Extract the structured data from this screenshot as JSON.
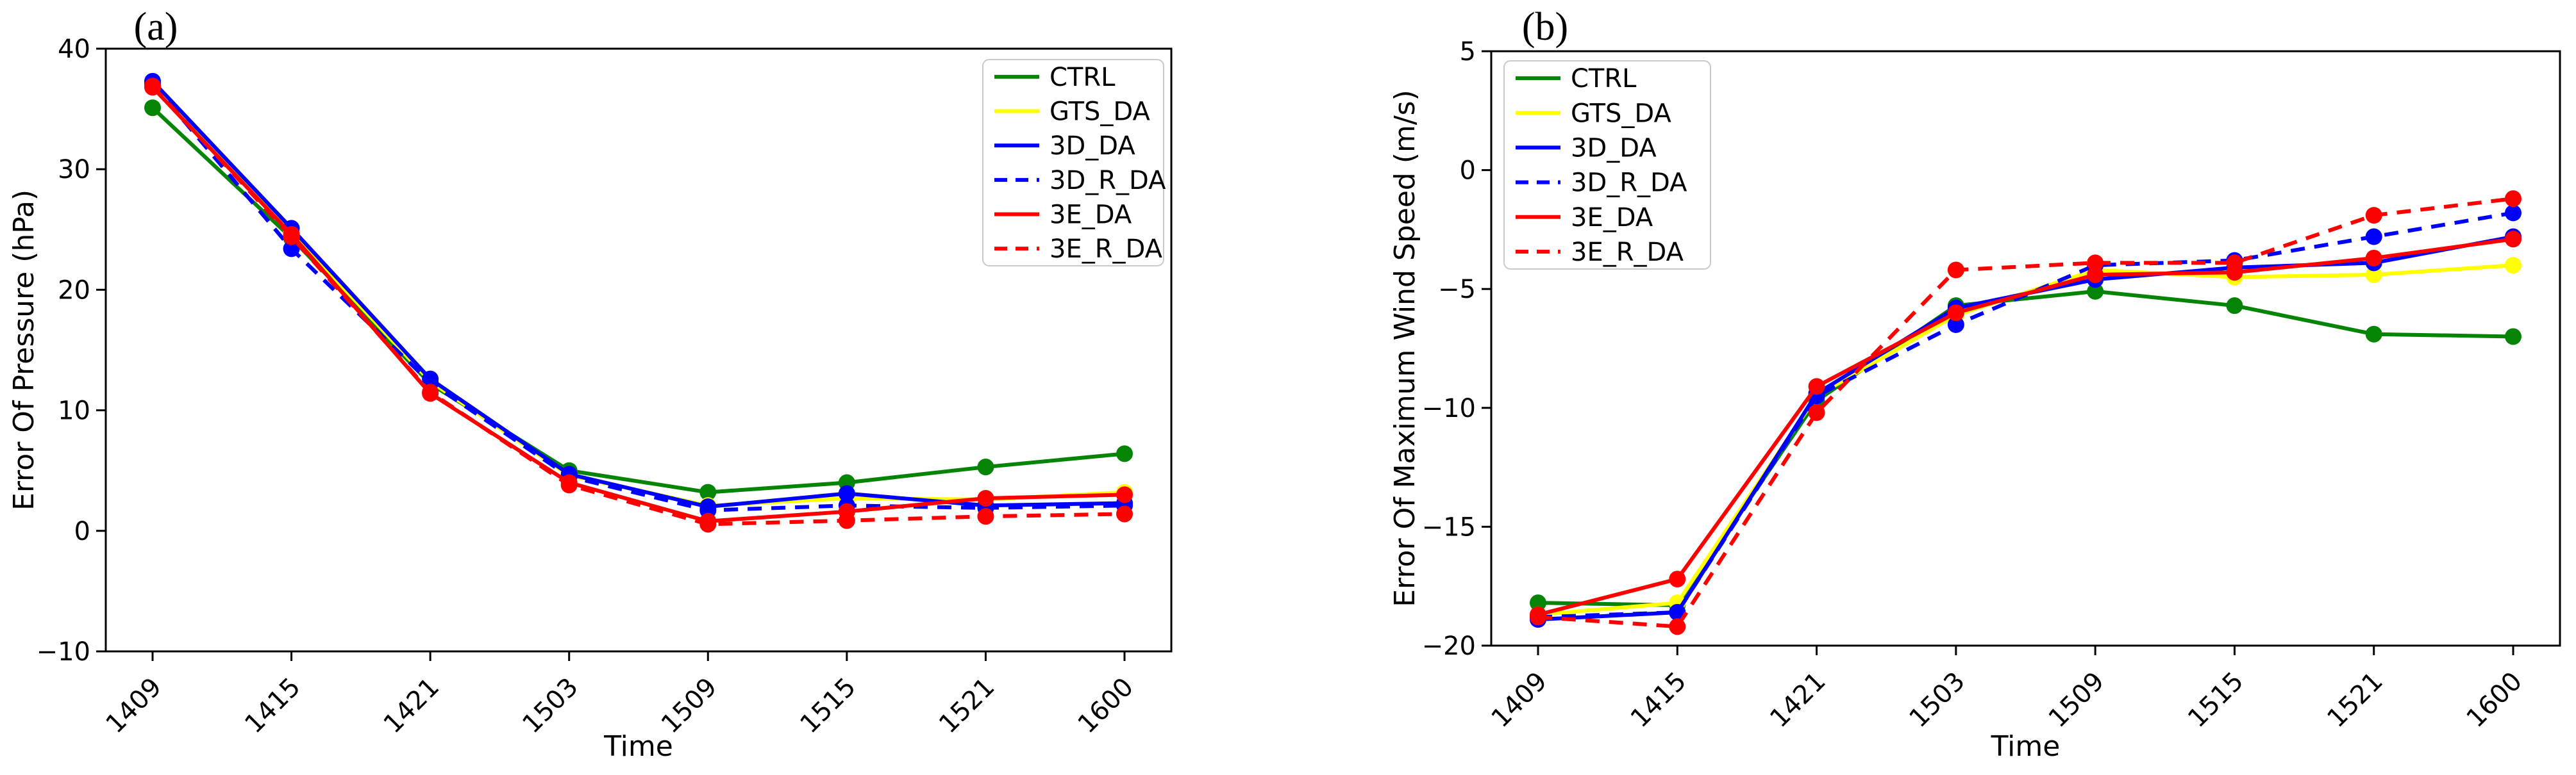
{
  "figure": {
    "background": "#ffffff",
    "panel_labels": [
      "(a)",
      "(b)"
    ]
  },
  "colors": {
    "green": "#068406",
    "yellow": "#ffff00",
    "blue": "#0000ff",
    "red": "#ff0000",
    "axis": "#000000",
    "legend_border": "#c9c9c9"
  },
  "chart_data": [
    {
      "type": "line",
      "title": "(a)",
      "xlabel": "Time",
      "ylabel": "Error Of Pressure (hPa)",
      "ylim": [
        -10,
        40
      ],
      "yticks": [
        40,
        30,
        20,
        10,
        0,
        -10
      ],
      "categories": [
        "1409",
        "1415",
        "1421",
        "1503",
        "1509",
        "1515",
        "1521",
        "1600"
      ],
      "grid": false,
      "legend_position": "upper right",
      "series": [
        {
          "name": "CTRL",
          "color": "#068406",
          "dash": false,
          "values": [
            35.1,
            24.3,
            12.2,
            5.0,
            3.2,
            4.0,
            5.3,
            6.4
          ]
        },
        {
          "name": "GTS_DA",
          "color": "#ffff00",
          "dash": false,
          "values": [
            36.9,
            24.8,
            12.4,
            4.6,
            2.1,
            2.7,
            2.6,
            3.2
          ]
        },
        {
          "name": "3D_DA",
          "color": "#0000ff",
          "dash": false,
          "values": [
            37.3,
            25.1,
            12.6,
            4.7,
            2.0,
            3.1,
            2.1,
            2.3
          ]
        },
        {
          "name": "3D_R_DA",
          "color": "#0000ff",
          "dash": true,
          "values": [
            37.1,
            23.4,
            12.3,
            4.5,
            1.7,
            2.1,
            1.9,
            2.1
          ]
        },
        {
          "name": "3E_DA",
          "color": "#ff0000",
          "dash": false,
          "values": [
            36.8,
            24.6,
            11.4,
            4.0,
            0.8,
            1.6,
            2.7,
            3.0
          ]
        },
        {
          "name": "3E_R_DA",
          "color": "#ff0000",
          "dash": true,
          "values": [
            36.9,
            24.4,
            11.5,
            3.8,
            0.55,
            0.85,
            1.2,
            1.4
          ]
        }
      ]
    },
    {
      "type": "line",
      "title": "(b)",
      "xlabel": "Time",
      "ylabel": "Error Of Maximum Wind Speed (m/s)",
      "ylim": [
        -20,
        5
      ],
      "yticks": [
        5,
        0,
        -5,
        -10,
        -15,
        -20
      ],
      "categories": [
        "1409",
        "1415",
        "1421",
        "1503",
        "1509",
        "1515",
        "1521",
        "1600"
      ],
      "grid": false,
      "legend_position": "upper left",
      "series": [
        {
          "name": "CTRL",
          "color": "#068406",
          "dash": false,
          "values": [
            -18.2,
            -18.3,
            -9.7,
            -5.7,
            -5.1,
            -5.7,
            -6.9,
            -7.0
          ]
        },
        {
          "name": "GTS_DA",
          "color": "#ffff00",
          "dash": false,
          "values": [
            -18.7,
            -18.2,
            -9.5,
            -6.1,
            -4.2,
            -4.5,
            -4.4,
            -4.0
          ]
        },
        {
          "name": "3D_DA",
          "color": "#0000ff",
          "dash": false,
          "values": [
            -18.9,
            -18.6,
            -9.4,
            -5.8,
            -4.6,
            -4.1,
            -3.9,
            -2.8
          ]
        },
        {
          "name": "3D_R_DA",
          "color": "#0000ff",
          "dash": true,
          "values": [
            -18.8,
            -18.6,
            -9.5,
            -6.5,
            -4.0,
            -3.8,
            -2.8,
            -1.8
          ]
        },
        {
          "name": "3E_DA",
          "color": "#ff0000",
          "dash": false,
          "values": [
            -18.7,
            -17.2,
            -9.1,
            -6.0,
            -4.4,
            -4.3,
            -3.7,
            -2.9
          ]
        },
        {
          "name": "3E_R_DA",
          "color": "#ff0000",
          "dash": true,
          "values": [
            -18.8,
            -19.2,
            -10.2,
            -4.2,
            -3.9,
            -3.9,
            -1.9,
            -1.2
          ]
        }
      ]
    }
  ]
}
